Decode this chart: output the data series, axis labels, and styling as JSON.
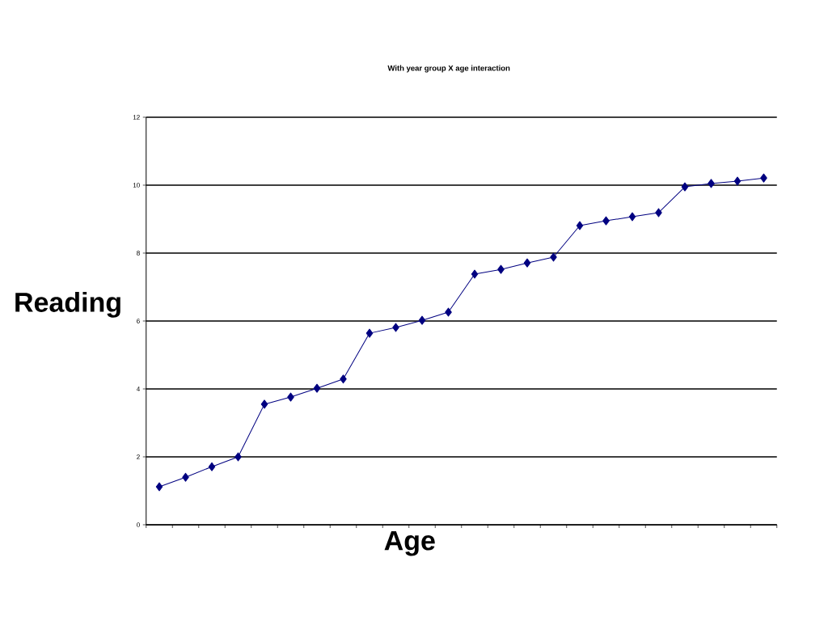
{
  "chart_data": {
    "type": "line",
    "title": "With year group X age interaction",
    "xlabel": "Age",
    "ylabel": "Reading",
    "categories": [
      null,
      null,
      null,
      null,
      null,
      null,
      null,
      null,
      null,
      null,
      null,
      null,
      null,
      null,
      null,
      null,
      null,
      null,
      null,
      null,
      null,
      null,
      null,
      null
    ],
    "series": [
      {
        "color": "#000080",
        "values": [
          1.12,
          1.4,
          1.71,
          2.0,
          3.55,
          3.76,
          4.02,
          4.29,
          5.64,
          5.81,
          6.02,
          6.26,
          7.38,
          7.52,
          7.71,
          7.88,
          8.81,
          8.95,
          9.07,
          9.19,
          9.95,
          10.05,
          10.12,
          10.21
        ]
      }
    ],
    "ylim": [
      0,
      12
    ],
    "yticks": [
      0,
      2,
      4,
      6,
      8,
      10,
      12
    ],
    "grid": "y",
    "marker": "diamond",
    "line_style": "solid",
    "tick_labels": "y"
  }
}
